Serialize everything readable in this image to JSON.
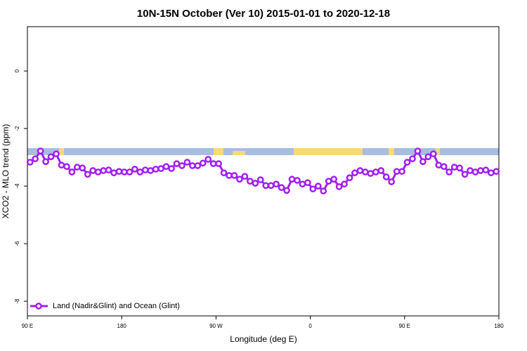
{
  "chart_data": {
    "type": "line",
    "title": "10N-15N October (Ver 10)   2015-01-01 to 2020-12-18",
    "x_label": "Longitude (deg E)",
    "y_label": "XCO2 - MLO trend (ppm)",
    "xlim": [
      90,
      540
    ],
    "ylim": [
      -8.51,
      1.54
    ],
    "xticks": [
      {
        "value": 90,
        "label": "90 E"
      },
      180,
      {
        "value": 270,
        "label": "90 W"
      },
      {
        "value": 360,
        "label": "0"
      },
      {
        "value": 450,
        "label": "90 E"
      },
      {
        "value": 540,
        "label": "180"
      }
    ],
    "yticks": [
      0,
      -2,
      -4,
      -6,
      -8
    ],
    "legend_position": "bottom-left",
    "x": [
      92.5,
      97.5,
      102.5,
      107.5,
      112.5,
      117.5,
      122.5,
      127.5,
      132.5,
      137.5,
      142.5,
      147.5,
      152.5,
      157.5,
      162.5,
      167.5,
      172.5,
      177.5,
      182.5,
      187.5,
      192.5,
      197.5,
      202.5,
      207.5,
      212.5,
      217.5,
      222.5,
      227.5,
      232.5,
      237.5,
      242.5,
      247.5,
      252.5,
      257.5,
      262.5,
      267.5,
      272.5,
      277.5,
      282.5,
      287.5,
      292.5,
      297.5,
      302.5,
      307.5,
      312.5,
      317.5,
      322.5,
      327.5,
      332.5,
      337.5,
      342.5,
      347.5,
      352.5,
      357.5,
      362.5,
      367.5,
      372.5,
      377.5,
      382.5,
      387.5,
      392.5,
      397.5,
      402.5,
      407.5,
      412.5,
      417.5,
      422.5,
      427.5,
      432.5,
      437.5,
      442.5,
      447.5,
      452.5,
      457.5,
      462.5,
      467.5,
      472.5,
      477.5,
      482.5,
      487.5,
      492.5,
      497.5,
      502.5,
      507.5,
      512.5,
      517.5,
      522.5,
      527.5,
      532.5,
      537.5
    ],
    "series": [
      {
        "name": "Land (Nadir&Glint) and Ocean (Glint)",
        "color": "#a020f0",
        "values": [
          -3.17,
          -3.05,
          -2.78,
          -3.15,
          -2.98,
          -2.88,
          -3.27,
          -3.32,
          -3.51,
          -3.34,
          -3.37,
          -3.59,
          -3.46,
          -3.51,
          -3.46,
          -3.44,
          -3.54,
          -3.49,
          -3.51,
          -3.51,
          -3.41,
          -3.51,
          -3.44,
          -3.46,
          -3.41,
          -3.39,
          -3.32,
          -3.39,
          -3.22,
          -3.29,
          -3.17,
          -3.29,
          -3.29,
          -3.2,
          -3.07,
          -3.22,
          -3.22,
          -3.54,
          -3.63,
          -3.63,
          -3.76,
          -3.66,
          -3.83,
          -3.9,
          -3.78,
          -3.98,
          -3.98,
          -3.93,
          -4.05,
          -4.15,
          -3.76,
          -3.8,
          -3.93,
          -3.88,
          -4.1,
          -4.0,
          -4.17,
          -3.83,
          -3.76,
          -4.02,
          -3.93,
          -3.71,
          -3.54,
          -3.46,
          -3.51,
          -3.56,
          -3.51,
          -3.46,
          -3.68,
          -3.85,
          -3.49,
          -3.49,
          -3.17,
          -3.05,
          -2.78,
          -3.15,
          -2.98,
          -2.88,
          -3.27,
          -3.32,
          -3.51,
          -3.34,
          -3.37,
          -3.59,
          -3.46,
          -3.51,
          -3.46,
          -3.44,
          -3.54,
          -3.49
        ]
      }
    ]
  }
}
